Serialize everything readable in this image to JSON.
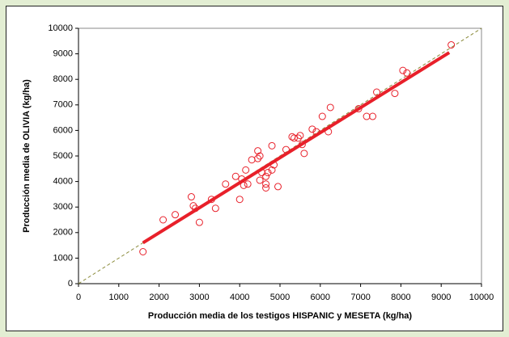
{
  "chart_data": {
    "type": "scatter",
    "xlabel": "Producción media de los testigos HISPANIC y MESETA (kg/ha)",
    "ylabel": "Producción media de OLIVIA  (kg/ha)",
    "xlim": [
      0,
      10000
    ],
    "ylim": [
      0,
      10000
    ],
    "xticks": [
      0,
      1000,
      2000,
      3000,
      4000,
      5000,
      6000,
      7000,
      8000,
      9000,
      10000
    ],
    "yticks": [
      0,
      1000,
      2000,
      3000,
      4000,
      5000,
      6000,
      7000,
      8000,
      9000,
      10000
    ],
    "grid": false,
    "series": [
      {
        "color": "#e8202a",
        "x": [
          1600,
          2100,
          2400,
          2800,
          2850,
          2900,
          3000,
          3300,
          3400,
          3650,
          3900,
          4000,
          4050,
          4100,
          4150,
          4200,
          4300,
          4450,
          4450,
          4500,
          4500,
          4550,
          4650,
          4650,
          4650,
          4700,
          4800,
          4800,
          4850,
          4950,
          5150,
          5300,
          5350,
          5450,
          5500,
          5550,
          5600,
          5800,
          5900,
          6050,
          6200,
          6250,
          6950,
          7150,
          7300,
          7400,
          7850,
          8050,
          8150,
          9250
        ],
        "values": [
          1250,
          2500,
          2700,
          3400,
          3050,
          2950,
          2400,
          3300,
          2950,
          3900,
          4200,
          3300,
          4100,
          3850,
          4450,
          3900,
          4850,
          4900,
          5200,
          5000,
          4050,
          4350,
          4200,
          3900,
          3750,
          4350,
          4450,
          5400,
          4650,
          3800,
          5250,
          5750,
          5700,
          5700,
          5800,
          5450,
          5100,
          6050,
          5950,
          6550,
          5950,
          6900,
          6850,
          6550,
          6550,
          7500,
          7450,
          8350,
          8250,
          9350
        ]
      }
    ],
    "lines": [
      {
        "color": "#8a8a3a",
        "style": "dashed",
        "x": [
          0,
          10000
        ],
        "values": [
          0,
          10000
        ]
      },
      {
        "color": "#e8202a",
        "style": "solid",
        "x": [
          1600,
          9200
        ],
        "values": [
          1600,
          9050
        ]
      }
    ]
  }
}
